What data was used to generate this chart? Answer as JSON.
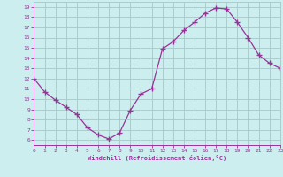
{
  "x": [
    0,
    1,
    2,
    3,
    4,
    5,
    6,
    7,
    8,
    9,
    10,
    11,
    12,
    13,
    14,
    15,
    16,
    17,
    18,
    19,
    20,
    21,
    22,
    23
  ],
  "y": [
    12.0,
    10.7,
    9.9,
    9.2,
    8.5,
    7.2,
    6.5,
    6.1,
    6.7,
    8.9,
    10.5,
    11.0,
    14.9,
    15.6,
    16.7,
    17.5,
    18.4,
    18.9,
    18.8,
    17.5,
    16.0,
    14.3,
    13.5,
    13.0
  ],
  "xlim": [
    0,
    23
  ],
  "ylim": [
    5.5,
    19.5
  ],
  "yticks": [
    6,
    7,
    8,
    9,
    10,
    11,
    12,
    13,
    14,
    15,
    16,
    17,
    18,
    19
  ],
  "xticks": [
    0,
    1,
    2,
    3,
    4,
    5,
    6,
    7,
    8,
    9,
    10,
    11,
    12,
    13,
    14,
    15,
    16,
    17,
    18,
    19,
    20,
    21,
    22,
    23
  ],
  "xlabel": "Windchill (Refroidissement éolien,°C)",
  "line_color": "#993399",
  "marker": "+",
  "bg_color": "#cceeee",
  "grid_color": "#aacccc",
  "tick_color": "#993399",
  "label_color": "#993399",
  "spine_color": "#993399",
  "spine_color_top": "#aacccc",
  "spine_color_right": "#aacccc"
}
